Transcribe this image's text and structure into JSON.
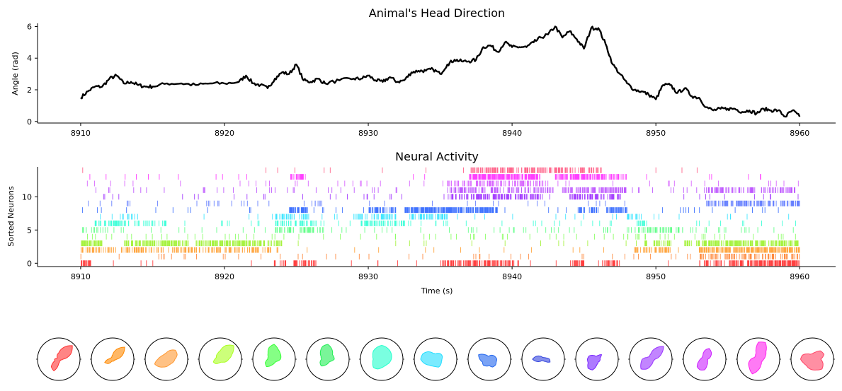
{
  "chart_data": [
    {
      "type": "line",
      "title": "Animal's Head Direction",
      "xlabel": "",
      "ylabel": "Angle (rad)",
      "xlim": [
        8907,
        8962.5
      ],
      "ylim": [
        -0.1,
        6.2
      ],
      "xticks": [
        8910,
        8920,
        8930,
        8940,
        8950,
        8960
      ],
      "yticks": [
        0,
        2,
        4,
        6
      ],
      "grid": false,
      "series": [
        {
          "color": "#000000",
          "x": [
            8910,
            8910.5,
            8911,
            8911.5,
            8912,
            8912.5,
            8913,
            8913.5,
            8914,
            8914.5,
            8915,
            8916,
            8917,
            8918,
            8919,
            8920,
            8921,
            8921.5,
            8922,
            8922.5,
            8923,
            8923.5,
            8924,
            8924.5,
            8925,
            8925.5,
            8926,
            8926.5,
            8927,
            8928,
            8929,
            8929.5,
            8930,
            8930.5,
            8931,
            8931.5,
            8932,
            8932.5,
            8933,
            8933.5,
            8934,
            8934.5,
            8935,
            8935.5,
            8936,
            8936.5,
            8937,
            8937.5,
            8938,
            8938.5,
            8939,
            8939.5,
            8940,
            8940.5,
            8941,
            8941.5,
            8942,
            8942.5,
            8943,
            8943.5,
            8944,
            8944.5,
            8945,
            8945.5,
            8946,
            8946.5,
            8947,
            8947.5,
            8948,
            8948.5,
            8949,
            8949.5,
            8950,
            8950.5,
            8951,
            8951.5,
            8952,
            8952.5,
            8953,
            8953.5,
            8954,
            8954.5,
            8955,
            8955.5,
            8956,
            8956.5,
            8957,
            8957.5,
            8958,
            8958.5,
            8959,
            8959.5,
            8960
          ],
          "y": [
            1.5,
            1.9,
            2.2,
            2.2,
            2.7,
            2.9,
            2.4,
            2.5,
            2.3,
            2.2,
            2.2,
            2.4,
            2.4,
            2.3,
            2.4,
            2.4,
            2.5,
            2.9,
            2.4,
            2.3,
            2.1,
            2.7,
            3.1,
            3.0,
            3.6,
            2.6,
            2.5,
            2.7,
            2.4,
            2.6,
            2.7,
            2.7,
            2.9,
            2.6,
            2.5,
            2.8,
            2.5,
            2.6,
            3.1,
            3.2,
            3.2,
            3.3,
            3.0,
            3.6,
            3.9,
            3.8,
            3.8,
            3.9,
            4.7,
            4.8,
            4.4,
            5.0,
            4.7,
            4.7,
            4.7,
            5.0,
            5.3,
            5.5,
            6.0,
            5.3,
            5.7,
            5.2,
            4.6,
            5.9,
            5.9,
            4.9,
            3.6,
            3.0,
            2.4,
            2.0,
            1.9,
            1.7,
            1.4,
            2.3,
            2.3,
            1.8,
            2.1,
            1.6,
            1.5,
            0.9,
            0.7,
            0.8,
            0.8,
            0.8,
            0.6,
            0.7,
            0.5,
            0.8,
            0.7,
            0.7,
            0.3,
            0.7,
            0.3
          ]
        }
      ]
    },
    {
      "type": "raster",
      "title": "Neural Activity",
      "xlabel": "Time (s)",
      "ylabel": "Sorted Neurons",
      "xlim": [
        8907,
        8962.5
      ],
      "ylim": [
        -0.5,
        14.5
      ],
      "xticks": [
        8910,
        8920,
        8930,
        8940,
        8950,
        8960
      ],
      "yticks": [
        0,
        5,
        10
      ],
      "neurons": [
        {
          "index": 0,
          "color": "#ff0000",
          "bursts": [
            [
              8910,
              8910.7,
              5
            ],
            [
              8923.5,
              8926.5,
              2
            ],
            [
              8935,
              8938.5,
              4
            ],
            [
              8938.5,
              8940.5,
              3
            ],
            [
              8944,
              8945,
              4
            ],
            [
              8946.5,
              8947.5,
              4
            ],
            [
              8953,
              8955,
              2
            ],
            [
              8955,
              8960,
              5
            ]
          ],
          "sparse": 0.5
        },
        {
          "index": 1,
          "color": "#ff6600",
          "bursts": [
            [
              8953,
              8960,
              2
            ]
          ],
          "sparse": 1.0
        },
        {
          "index": 2,
          "color": "#ff8800",
          "bursts": [
            [
              8910,
              8924,
              2
            ],
            [
              8948.5,
              8951,
              3
            ],
            [
              8953,
              8960,
              5
            ]
          ],
          "sparse": 0.5
        },
        {
          "index": 3,
          "color": "#88ee00",
          "bursts": [
            [
              8910,
              8911.5,
              5
            ],
            [
              8913,
              8917.5,
              4
            ],
            [
              8918,
              8922,
              4
            ],
            [
              8922,
              8924,
              3
            ],
            [
              8949,
              8951,
              2
            ],
            [
              8952,
              8960,
              4
            ]
          ],
          "sparse": 0.5
        },
        {
          "index": 4,
          "color": "#66ff33",
          "bursts": [],
          "sparse": 1.5
        },
        {
          "index": 5,
          "color": "#33ff66",
          "bursts": [
            [
              8910,
              8912,
              1
            ],
            [
              8923.5,
              8927,
              2
            ],
            [
              8948,
              8952,
              2
            ]
          ],
          "sparse": 1.5
        },
        {
          "index": 6,
          "color": "#00ffcc",
          "bursts": [
            [
              8911,
              8916,
              2
            ],
            [
              8923.5,
              8926.5,
              2
            ],
            [
              8929.5,
              8933,
              2
            ],
            [
              8948.5,
              8949.5,
              3
            ]
          ],
          "sparse": 1.0
        },
        {
          "index": 7,
          "color": "#00ddff",
          "bursts": [
            [
              8912,
              8914,
              1
            ],
            [
              8923.5,
              8926,
              2
            ],
            [
              8929,
              8932,
              2
            ],
            [
              8933,
              8935.5,
              3
            ],
            [
              8948,
              8949,
              3
            ]
          ],
          "sparse": 0.8
        },
        {
          "index": 8,
          "color": "#0044ff",
          "bursts": [
            [
              8924.5,
              8925.8,
              6
            ],
            [
              8930,
              8932,
              3
            ],
            [
              8932.5,
              8939,
              6
            ],
            [
              8944.5,
              8946,
              3
            ],
            [
              8946.5,
              8948,
              5
            ]
          ],
          "sparse": 0.8
        },
        {
          "index": 9,
          "color": "#3355ff",
          "bursts": [
            [
              8953.5,
              8960,
              3
            ]
          ],
          "sparse": 1.0
        },
        {
          "index": 10,
          "color": "#8800ff",
          "bursts": [
            [
              8935.5,
              8942,
              3
            ],
            [
              8944,
              8947.5,
              3
            ]
          ],
          "sparse": 1.0
        },
        {
          "index": 11,
          "color": "#aa22ff",
          "bursts": [
            [
              8935.5,
              8943,
              2
            ],
            [
              8943.5,
              8948,
              3
            ],
            [
              8953.5,
              8960,
              2
            ]
          ],
          "sparse": 1.2
        },
        {
          "index": 12,
          "color": "#cc33ff",
          "bursts": [
            [
              8935.5,
              8942.5,
              2
            ]
          ],
          "sparse": 1.0
        },
        {
          "index": 13,
          "color": "#ff00ff",
          "bursts": [
            [
              8924.5,
              8925.5,
              4
            ],
            [
              8937,
              8942,
              6
            ],
            [
              8943,
              8945.5,
              5
            ],
            [
              8945.5,
              8948,
              3
            ]
          ],
          "sparse": 0.5
        },
        {
          "index": 14,
          "color": "#ff3366",
          "bursts": [
            [
              8937,
              8946.5,
              3
            ]
          ],
          "sparse": 0.3
        }
      ]
    },
    {
      "type": "polar-grid",
      "title": "",
      "panels": [
        {
          "color": "#ff3333",
          "r": [
            0.2,
            0.6,
            0.9,
            0.6,
            0.3,
            0.2,
            0.1,
            0.1,
            0.2,
            0.2,
            0.5,
            0.6,
            0.2,
            0.1,
            0.1,
            0.1
          ]
        },
        {
          "color": "#ff8800",
          "r": [
            0.2,
            0.5,
            0.8,
            0.5,
            0.2,
            0.1,
            0.1,
            0.1,
            0.2,
            0.4,
            0.3,
            0.1,
            0.1,
            0.1,
            0.1,
            0.1
          ]
        },
        {
          "color": "#ff9933",
          "r": [
            0.4,
            0.55,
            0.6,
            0.45,
            0.3,
            0.25,
            0.25,
            0.3,
            0.4,
            0.6,
            0.5,
            0.4,
            0.35,
            0.3,
            0.3,
            0.35
          ]
        },
        {
          "color": "#aaff22",
          "r": [
            0.4,
            0.6,
            0.9,
            0.7,
            0.4,
            0.3,
            0.25,
            0.2,
            0.25,
            0.35,
            0.3,
            0.2,
            0.15,
            0.15,
            0.2,
            0.3
          ]
        },
        {
          "color": "#33ff33",
          "r": [
            0.3,
            0.35,
            0.4,
            0.5,
            0.7,
            0.6,
            0.4,
            0.3,
            0.3,
            0.45,
            0.5,
            0.3,
            0.2,
            0.15,
            0.15,
            0.2
          ]
        },
        {
          "color": "#22ee55",
          "r": [
            0.3,
            0.3,
            0.3,
            0.5,
            0.7,
            0.65,
            0.5,
            0.35,
            0.3,
            0.4,
            0.45,
            0.3,
            0.2,
            0.15,
            0.15,
            0.2
          ]
        },
        {
          "color": "#22ffcc",
          "r": [
            0.45,
            0.5,
            0.55,
            0.6,
            0.65,
            0.6,
            0.55,
            0.45,
            0.4,
            0.45,
            0.55,
            0.5,
            0.4,
            0.35,
            0.35,
            0.4
          ]
        },
        {
          "color": "#22ddff",
          "r": [
            0.3,
            0.35,
            0.35,
            0.3,
            0.25,
            0.3,
            0.5,
            0.65,
            0.7,
            0.55,
            0.4,
            0.35,
            0.35,
            0.4,
            0.35,
            0.3
          ]
        },
        {
          "color": "#2266ee",
          "r": [
            0.35,
            0.3,
            0.25,
            0.2,
            0.15,
            0.15,
            0.3,
            0.55,
            0.45,
            0.35,
            0.4,
            0.35,
            0.3,
            0.4,
            0.4,
            0.35
          ]
        },
        {
          "color": "#3344dd",
          "r": [
            0.3,
            0.15,
            0.1,
            0.08,
            0.08,
            0.1,
            0.2,
            0.35,
            0.5,
            0.3,
            0.1,
            0.08,
            0.08,
            0.1,
            0.15,
            0.35
          ]
        },
        {
          "color": "#7722ff",
          "r": [
            0.15,
            0.15,
            0.3,
            0.2,
            0.15,
            0.15,
            0.25,
            0.4,
            0.45,
            0.45,
            0.6,
            0.55,
            0.25,
            0.15,
            0.15,
            0.15
          ]
        },
        {
          "color": "#9933ff",
          "r": [
            0.2,
            0.5,
            0.85,
            0.55,
            0.25,
            0.15,
            0.15,
            0.2,
            0.4,
            0.5,
            0.65,
            0.5,
            0.3,
            0.2,
            0.15,
            0.15
          ]
        },
        {
          "color": "#cc22ff",
          "r": [
            0.15,
            0.3,
            0.45,
            0.55,
            0.4,
            0.2,
            0.15,
            0.15,
            0.2,
            0.3,
            0.5,
            0.55,
            0.5,
            0.3,
            0.2,
            0.15
          ]
        },
        {
          "color": "#ff22ee",
          "r": [
            0.25,
            0.35,
            0.5,
            0.85,
            0.8,
            0.3,
            0.2,
            0.2,
            0.35,
            0.5,
            0.6,
            0.75,
            0.5,
            0.3,
            0.2,
            0.2
          ]
        },
        {
          "color": "#ff4466",
          "r": [
            0.4,
            0.6,
            0.55,
            0.35,
            0.25,
            0.25,
            0.35,
            0.5,
            0.55,
            0.45,
            0.4,
            0.45,
            0.5,
            0.55,
            0.65,
            0.55
          ]
        }
      ]
    }
  ]
}
